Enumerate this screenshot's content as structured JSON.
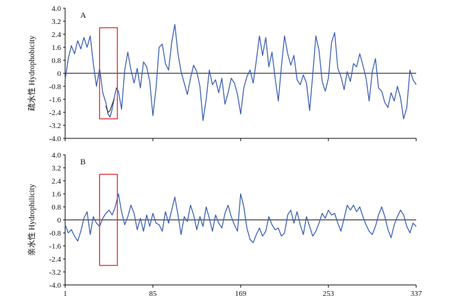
{
  "chart_data": [
    {
      "type": "line",
      "panel_label": "A",
      "ylabel": "疏水性 Hydrophobicity",
      "ylim": [
        -4.0,
        4.0
      ],
      "yticks": [
        "4.0",
        "3.2",
        "2.4",
        "1.6",
        "0.8",
        "0",
        "-0.8",
        "-1.6",
        "-2.4",
        "-3.2",
        "-4.0"
      ],
      "xlim": [
        1,
        337
      ],
      "xticks": [
        "1",
        "85",
        "169",
        "253",
        "337"
      ],
      "highlight": {
        "x_start": 34,
        "x_end": 51,
        "y_top": 2.8,
        "y_bottom": -2.8,
        "color": "#e0303b"
      },
      "series": [
        {
          "color": "#3a5fb0",
          "x": [
            1,
            4,
            7,
            10,
            13,
            16,
            19,
            22,
            25,
            28,
            31,
            34,
            37,
            40,
            42,
            44,
            46,
            48,
            50,
            52,
            55,
            58,
            61,
            64,
            67,
            70,
            73,
            76,
            79,
            82,
            85,
            88,
            91,
            94,
            97,
            100,
            103,
            106,
            109,
            112,
            115,
            118,
            121,
            124,
            127,
            130,
            133,
            136,
            139,
            142,
            145,
            148,
            151,
            154,
            157,
            160,
            163,
            166,
            169,
            172,
            175,
            178,
            181,
            184,
            187,
            190,
            193,
            196,
            199,
            202,
            205,
            208,
            211,
            214,
            217,
            220,
            223,
            226,
            229,
            232,
            235,
            238,
            241,
            244,
            247,
            250,
            253,
            256,
            259,
            262,
            265,
            268,
            271,
            274,
            277,
            280,
            283,
            286,
            289,
            292,
            295,
            298,
            301,
            304,
            307,
            310,
            313,
            316,
            319,
            322,
            325,
            328,
            331,
            334,
            337
          ],
          "y": [
            -0.4,
            0.9,
            1.7,
            1.2,
            2.0,
            1.5,
            2.2,
            1.6,
            2.3,
            0.6,
            -0.8,
            0.3,
            -1.2,
            -1.8,
            -2.5,
            -2.7,
            -2.2,
            -1.5,
            -0.9,
            -1.1,
            -2.2,
            0.2,
            1.3,
            0.2,
            -0.6,
            0.3,
            -0.9,
            0.7,
            0.4,
            -0.5,
            -2.6,
            -0.9,
            1.6,
            1.8,
            0.6,
            0.2,
            1.9,
            3.0,
            1.2,
            0.1,
            -0.6,
            -1.3,
            -0.3,
            0.5,
            0.1,
            -0.8,
            -2.9,
            -1.6,
            0.2,
            -0.7,
            -0.4,
            -1.2,
            -0.3,
            -1.9,
            -1.2,
            -0.3,
            -0.6,
            -1.3,
            -2.5,
            -0.9,
            -0.2,
            0.2,
            -0.6,
            0.8,
            2.3,
            1.1,
            2.2,
            0.4,
            1.3,
            -0.3,
            -1.7,
            0.4,
            2.3,
            1.2,
            0.5,
            1.1,
            -0.4,
            -0.7,
            -0.1,
            -0.6,
            -2.3,
            -0.1,
            2.3,
            1.4,
            -0.5,
            -1.1,
            -0.3,
            1.9,
            2.5,
            0.3,
            -0.2,
            -1.0,
            0.1,
            -0.5,
            0.6,
            0.4,
            1.2,
            0.5,
            -0.3,
            -1.7,
            0.1,
            0.9,
            -0.9,
            -1.1,
            -1.8,
            -2.1,
            -1.2,
            -1.7,
            -0.8,
            -1.5,
            -2.8,
            -2.1,
            0.2,
            -0.4,
            -0.7
          ]
        },
        {
          "color": "#222222",
          "x": [
            40,
            42,
            44,
            46,
            48
          ],
          "y": [
            -2.0,
            -2.4,
            -2.3,
            -1.9,
            -1.6
          ]
        }
      ]
    },
    {
      "type": "line",
      "panel_label": "B",
      "ylabel": "亲水性 Hydrophilicity",
      "ylim": [
        -4.0,
        4.0
      ],
      "yticks": [
        "4.0",
        "3.2",
        "2.4",
        "1.6",
        "0.8",
        "0",
        "-0.8",
        "-1.6",
        "-2.4",
        "-3.2",
        "-4.0"
      ],
      "xlim": [
        1,
        337
      ],
      "xticks": [
        "1",
        "85",
        "169",
        "253",
        "337"
      ],
      "highlight": {
        "x_start": 34,
        "x_end": 51,
        "y_top": 2.8,
        "y_bottom": -2.8,
        "color": "#e0303b"
      },
      "series": [
        {
          "color": "#3a5fb0",
          "x": [
            1,
            4,
            7,
            10,
            13,
            16,
            19,
            22,
            25,
            28,
            31,
            34,
            37,
            40,
            43,
            46,
            49,
            52,
            55,
            58,
            61,
            64,
            67,
            70,
            73,
            76,
            79,
            82,
            85,
            88,
            91,
            94,
            97,
            100,
            103,
            106,
            109,
            112,
            115,
            118,
            121,
            124,
            127,
            130,
            133,
            136,
            139,
            142,
            145,
            148,
            151,
            154,
            157,
            160,
            163,
            166,
            169,
            172,
            175,
            178,
            181,
            184,
            187,
            190,
            193,
            196,
            199,
            202,
            205,
            208,
            211,
            214,
            217,
            220,
            223,
            226,
            229,
            232,
            235,
            238,
            241,
            244,
            247,
            250,
            253,
            256,
            259,
            262,
            265,
            268,
            271,
            274,
            277,
            280,
            283,
            286,
            289,
            292,
            295,
            298,
            301,
            304,
            307,
            310,
            313,
            316,
            319,
            322,
            325,
            328,
            331,
            334,
            337
          ],
          "y": [
            -0.3,
            -0.8,
            -0.6,
            -1.0,
            -1.3,
            -0.7,
            0.1,
            0.5,
            -0.9,
            0.2,
            -0.2,
            -0.4,
            0.1,
            0.4,
            0.6,
            0.3,
            0.8,
            1.6,
            0.5,
            -0.3,
            0.2,
            0.9,
            0.4,
            -0.6,
            0.1,
            -0.7,
            0.3,
            -0.4,
            0.4,
            -0.2,
            -0.3,
            -0.7,
            0.5,
            -0.2,
            0.6,
            1.4,
            0.3,
            -0.9,
            0.2,
            -0.1,
            0.9,
            0.3,
            -0.6,
            0.2,
            -0.4,
            0.8,
            0.1,
            -0.7,
            0.3,
            -0.2,
            -0.5,
            0.4,
            0.9,
            0.2,
            -0.3,
            -0.7,
            1.6,
            0.8,
            -0.5,
            -1.2,
            -1.4,
            -0.9,
            -0.5,
            -1.0,
            -0.7,
            0.2,
            -0.3,
            -0.6,
            -0.5,
            -1.0,
            -0.8,
            0.3,
            0.6,
            -0.2,
            0.5,
            -0.3,
            -0.9,
            0.2,
            -0.4,
            -1.0,
            -0.7,
            -0.2,
            0.4,
            0.1,
            0.6,
            0.3,
            0.4,
            -0.2,
            -0.7,
            0.1,
            0.9,
            0.6,
            0.9,
            0.5,
            0.8,
            0.2,
            -0.3,
            -0.7,
            -0.9,
            -0.4,
            0.3,
            0.8,
            0.2,
            -0.6,
            -1.1,
            -0.3,
            0.2,
            0.6,
            0.3,
            -0.4,
            -0.8,
            -0.2,
            -0.4
          ]
        }
      ]
    }
  ]
}
